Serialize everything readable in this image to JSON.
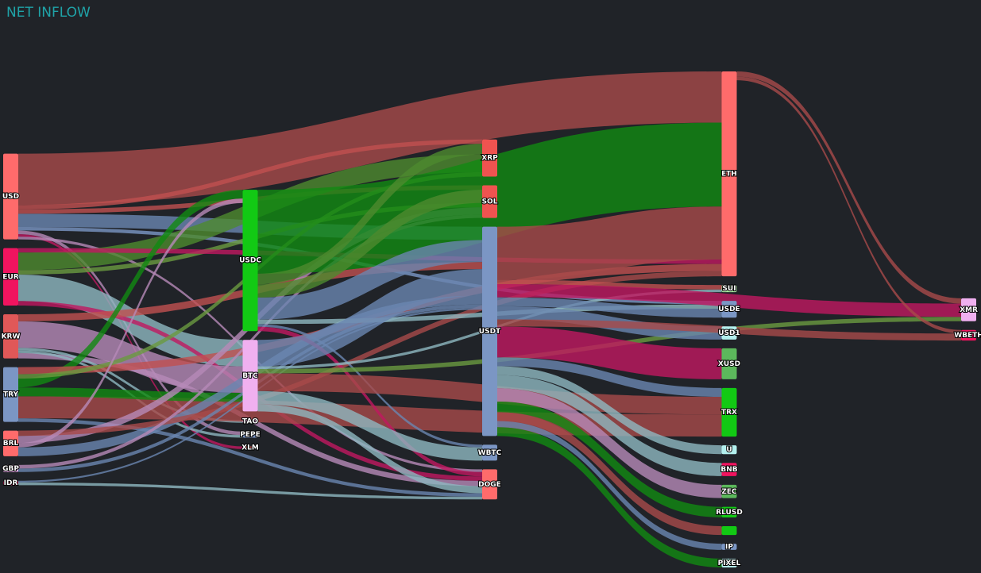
{
  "chart_data": {
    "type": "sankey",
    "title": "NET INFLOW",
    "nodes": [
      {
        "label": "USD",
        "color": "#ff6b6b"
      },
      {
        "label": "EUR",
        "color": "#f0145f"
      },
      {
        "label": "KRW",
        "color": "#e05858"
      },
      {
        "label": "TRY",
        "color": "#7b96c4"
      },
      {
        "label": "BRL",
        "color": "#ff6b6b"
      },
      {
        "label": "GBP",
        "color": "#f0b0f0"
      },
      {
        "label": "IDR",
        "color": "#f0145f"
      },
      {
        "label": "USDC",
        "color": "#12c914"
      },
      {
        "label": "BTC",
        "color": "#f0b0f0"
      },
      {
        "label": "TAO",
        "color": "#f0b0f0"
      },
      {
        "label": "PEPE",
        "color": "#7b96c4"
      },
      {
        "label": "XLM",
        "color": "#c0504d"
      },
      {
        "label": "XRP",
        "color": "#ef5350"
      },
      {
        "label": "SOL",
        "color": "#ef5350"
      },
      {
        "label": "USDT",
        "color": "#7b96c4"
      },
      {
        "label": "WBTC",
        "color": "#7b96c4"
      },
      {
        "label": "DOGE",
        "color": "#ff6b6b"
      },
      {
        "label": "ETH",
        "color": "#ff6b6b"
      },
      {
        "label": "SUI",
        "color": "#a8e6a0"
      },
      {
        "label": "USDE",
        "color": "#7b96c4"
      },
      {
        "label": "USD1",
        "color": "#b3f0ee"
      },
      {
        "label": "XUSD",
        "color": "#5cb85c"
      },
      {
        "label": "TRX",
        "color": "#12c914"
      },
      {
        "label": "U",
        "color": "#b3f0ee"
      },
      {
        "label": "BNB",
        "color": "#f0145f"
      },
      {
        "label": "ZEC",
        "color": "#5cb85c"
      },
      {
        "label": "RLUSD",
        "color": "#12c914"
      },
      {
        "label": null,
        "color": "#12c914"
      },
      {
        "label": "IP",
        "color": "#7b96c4"
      },
      {
        "label": "PIXEL",
        "color": "#b3f0ee"
      },
      {
        "label": "XMR",
        "color": "#f0b0f0"
      },
      {
        "label": "WBETH",
        "color": "#f0145f"
      }
    ],
    "links": [
      {
        "source": 0,
        "target": 17,
        "value": 58,
        "color": "#a84a4a"
      },
      {
        "source": 0,
        "target": 12,
        "value": 5,
        "color": "#c05050"
      },
      {
        "source": 0,
        "target": 13,
        "value": 5,
        "color": "#c05050"
      },
      {
        "source": 0,
        "target": 14,
        "value": 15,
        "color": "#6a86b0"
      },
      {
        "source": 0,
        "target": 19,
        "value": 4,
        "color": "#7b96c4"
      },
      {
        "source": 0,
        "target": 11,
        "value": 3,
        "color": "#c01860"
      },
      {
        "source": 0,
        "target": 16,
        "value": 3,
        "color": "#b78ab8"
      },
      {
        "source": 0,
        "target": 10,
        "value": 4,
        "color": "#b78ab8"
      },
      {
        "source": 1,
        "target": 12,
        "value": 20,
        "color": "#4e8a2e"
      },
      {
        "source": 1,
        "target": 13,
        "value": 5,
        "color": "#6a9a40"
      },
      {
        "source": 1,
        "target": 8,
        "value": 30,
        "color": "#8fb8c0"
      },
      {
        "source": 1,
        "target": 16,
        "value": 5,
        "color": "#c01860"
      },
      {
        "source": 1,
        "target": 17,
        "value": 5,
        "color": "#c01860"
      },
      {
        "source": 2,
        "target": 8,
        "value": 30,
        "color": "#b78ab8"
      },
      {
        "source": 2,
        "target": 14,
        "value": 8,
        "color": "#c05050"
      },
      {
        "source": 2,
        "target": 16,
        "value": 6,
        "color": "#b78ab8"
      },
      {
        "source": 2,
        "target": 9,
        "value": 3,
        "color": "#8fb8c0"
      },
      {
        "source": 2,
        "target": 10,
        "value": 3,
        "color": "#8fb8c0"
      },
      {
        "source": 3,
        "target": 22,
        "value": 25,
        "color": "#a84a4a"
      },
      {
        "source": 3,
        "target": 8,
        "value": 10,
        "color": "#128a12"
      },
      {
        "source": 3,
        "target": 7,
        "value": 10,
        "color": "#128a12"
      },
      {
        "source": 3,
        "target": 17,
        "value": 8,
        "color": "#c05050"
      },
      {
        "source": 3,
        "target": 12,
        "value": 5,
        "color": "#6a9a40"
      },
      {
        "source": 3,
        "target": 16,
        "value": 4,
        "color": "#6a86b0"
      },
      {
        "source": 4,
        "target": 14,
        "value": 10,
        "color": "#6a86b0"
      },
      {
        "source": 4,
        "target": 13,
        "value": 8,
        "color": "#b78ab8"
      },
      {
        "source": 4,
        "target": 17,
        "value": 6,
        "color": "#a84a4a"
      },
      {
        "source": 4,
        "target": 7,
        "value": 5,
        "color": "#b78ab8"
      },
      {
        "source": 5,
        "target": 14,
        "value": 4,
        "color": "#6a86b0"
      },
      {
        "source": 5,
        "target": 13,
        "value": 4,
        "color": "#b78ab8"
      },
      {
        "source": 6,
        "target": 14,
        "value": 2,
        "color": "#6a86b0"
      },
      {
        "source": 6,
        "target": 16,
        "value": 3,
        "color": "#8fb8c0"
      },
      {
        "source": 7,
        "target": 17,
        "value": 95,
        "color": "#128a12"
      },
      {
        "source": 7,
        "target": 12,
        "value": 12,
        "color": "#4e8a2e"
      },
      {
        "source": 7,
        "target": 13,
        "value": 15,
        "color": "#4e8a2e"
      },
      {
        "source": 7,
        "target": 14,
        "value": 25,
        "color": "#6a86b0"
      },
      {
        "source": 7,
        "target": 19,
        "value": 5,
        "color": "#8fb8c0"
      },
      {
        "source": 7,
        "target": 16,
        "value": 5,
        "color": "#c01860"
      },
      {
        "source": 7,
        "target": 15,
        "value": 3,
        "color": "#6a86b0"
      },
      {
        "source": 8,
        "target": 14,
        "value": 30,
        "color": "#6a86b0"
      },
      {
        "source": 8,
        "target": 22,
        "value": 20,
        "color": "#a84a4a"
      },
      {
        "source": 8,
        "target": 15,
        "value": 15,
        "color": "#8fb8c0"
      },
      {
        "source": 8,
        "target": 16,
        "value": 8,
        "color": "#8fb8c0"
      },
      {
        "source": 8,
        "target": 30,
        "value": 5,
        "color": "#6a9a40"
      },
      {
        "source": 8,
        "target": 18,
        "value": 3,
        "color": "#8fb8c0"
      },
      {
        "source": 14,
        "target": 17,
        "value": 60,
        "color": "#a84a4a"
      },
      {
        "source": 14,
        "target": 20,
        "value": 15,
        "color": "#6a86b0"
      },
      {
        "source": 14,
        "target": 21,
        "value": 35,
        "color": "#c01860"
      },
      {
        "source": 14,
        "target": 19,
        "value": 10,
        "color": "#6a86b0"
      },
      {
        "source": 14,
        "target": 18,
        "value": 5,
        "color": "#c05050"
      },
      {
        "source": 14,
        "target": 22,
        "value": 10,
        "color": "#6a86b0"
      },
      {
        "source": 14,
        "target": 23,
        "value": 10,
        "color": "#8fb8c0"
      },
      {
        "source": 14,
        "target": 24,
        "value": 15,
        "color": "#8fb8c0"
      },
      {
        "source": 14,
        "target": 25,
        "value": 15,
        "color": "#b78ab8"
      },
      {
        "source": 14,
        "target": 26,
        "value": 12,
        "color": "#128a12"
      },
      {
        "source": 14,
        "target": 27,
        "value": 10,
        "color": "#a84a4a"
      },
      {
        "source": 14,
        "target": 28,
        "value": 7,
        "color": "#6a86b0"
      },
      {
        "source": 14,
        "target": 29,
        "value": 10,
        "color": "#128a12"
      },
      {
        "source": 14,
        "target": 31,
        "value": 8,
        "color": "#a84a4a"
      },
      {
        "source": 14,
        "target": 30,
        "value": 15,
        "color": "#c01860"
      },
      {
        "source": 17,
        "target": 30,
        "value": 6,
        "color": "#a84a4a"
      },
      {
        "source": 17,
        "target": 31,
        "value": 4,
        "color": "#a84a4a"
      }
    ]
  }
}
